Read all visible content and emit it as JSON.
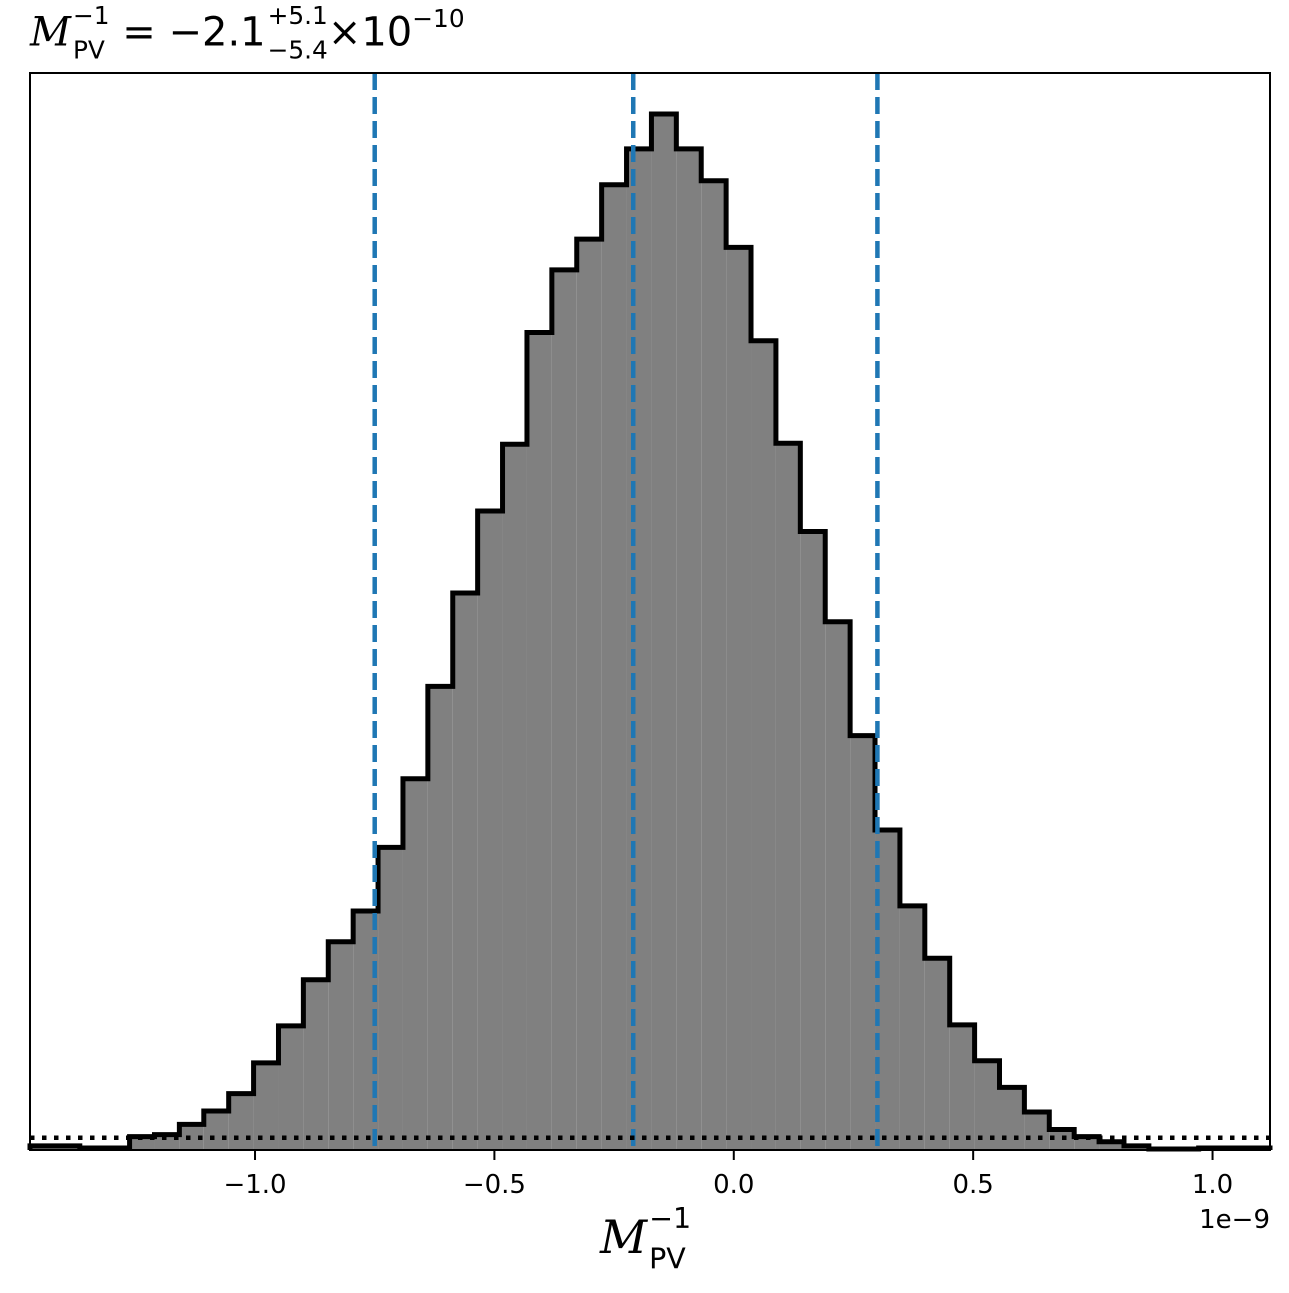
{
  "chart_data": {
    "type": "histogram",
    "title": {
      "symbol": "M",
      "symbol_sup": "−1",
      "symbol_sub": "PV",
      "equals": "=",
      "median": "−2.1",
      "upper_err": "+5.1",
      "lower_err": "−5.4",
      "times": "×",
      "base": "10",
      "exponent": "−10"
    },
    "xlabel": {
      "symbol": "M",
      "sup": "−1",
      "sub": "PV"
    },
    "offset_text": "1e−9",
    "x_scale_factor": 1e-09,
    "xlim": [
      -1.47,
      1.12
    ],
    "ylim": [
      0,
      1.05
    ],
    "xticks": [
      {
        "value": -1.0,
        "label": "−1.0"
      },
      {
        "value": -0.5,
        "label": "−0.5"
      },
      {
        "value": 0.0,
        "label": "0.0"
      },
      {
        "value": 0.5,
        "label": "0.5"
      },
      {
        "value": 1.0,
        "label": "1.0"
      }
    ],
    "yticks": [],
    "bin_edges": [
      -1.47,
      -1.366,
      -1.262,
      -1.21,
      -1.158,
      -1.107,
      -1.055,
      -1.003,
      -0.951,
      -0.899,
      -0.847,
      -0.795,
      -0.743,
      -0.691,
      -0.639,
      -0.587,
      -0.535,
      -0.483,
      -0.432,
      -0.38,
      -0.328,
      -0.276,
      -0.224,
      -0.172,
      -0.12,
      -0.068,
      -0.016,
      0.036,
      0.088,
      0.139,
      0.191,
      0.243,
      0.295,
      0.347,
      0.399,
      0.451,
      0.503,
      0.555,
      0.607,
      0.659,
      0.711,
      0.763,
      0.815,
      0.867,
      0.971,
      1.12
    ],
    "counts": [
      0.004,
      0.002,
      0.013,
      0.015,
      0.025,
      0.038,
      0.055,
      0.085,
      0.121,
      0.166,
      0.203,
      0.233,
      0.295,
      0.362,
      0.452,
      0.543,
      0.623,
      0.688,
      0.797,
      0.858,
      0.888,
      0.941,
      0.976,
      1.01,
      0.976,
      0.945,
      0.88,
      0.789,
      0.689,
      0.603,
      0.515,
      0.404,
      0.312,
      0.238,
      0.187,
      0.122,
      0.087,
      0.061,
      0.037,
      0.02,
      0.013,
      0.008,
      0.004,
      0.001,
      0.002
    ],
    "hist_fill_color": "#808080",
    "hist_edge_color": "#000000",
    "vlines": [
      {
        "x": -0.75,
        "style": "dashed",
        "color": "#1f77b4"
      },
      {
        "x": -0.21,
        "style": "dashed",
        "color": "#1f77b4"
      },
      {
        "x": 0.3,
        "style": "dashed",
        "color": "#1f77b4"
      }
    ],
    "hline": {
      "y": 0.012,
      "style": "dotted",
      "color": "#000000"
    },
    "grid": false,
    "legend": "none"
  }
}
